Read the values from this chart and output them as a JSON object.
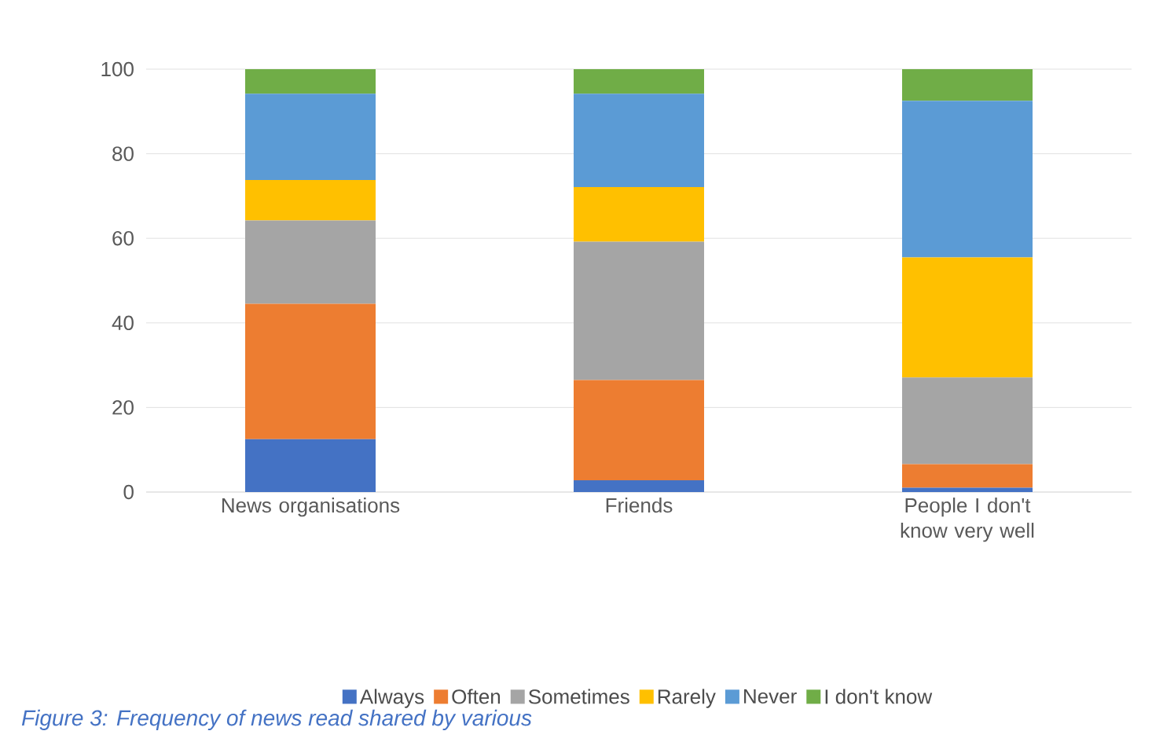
{
  "chart_data": {
    "type": "bar",
    "stacked": true,
    "categories": [
      "News organisations",
      "Friends",
      "People I don't know very well"
    ],
    "series": [
      {
        "name": "Always",
        "color": "#4472c4",
        "values": [
          12.5,
          2.8,
          1.0
        ]
      },
      {
        "name": "Often",
        "color": "#ed7d31",
        "values": [
          32,
          23.7,
          5.6
        ]
      },
      {
        "name": "Sometimes",
        "color": "#a5a5a5",
        "values": [
          19.7,
          32.7,
          20.5
        ]
      },
      {
        "name": "Rarely",
        "color": "#ffc000",
        "values": [
          9.6,
          12.9,
          28.4
        ]
      },
      {
        "name": "Never",
        "color": "#5b9bd5",
        "values": [
          20.4,
          22.1,
          37
        ]
      },
      {
        "name": "I don't know",
        "color": "#70ad47",
        "values": [
          5.8,
          5.8,
          7.5
        ]
      }
    ],
    "ylim": [
      0,
      100
    ],
    "yticks": [
      0,
      20,
      40,
      60,
      80,
      100
    ],
    "grid": "y",
    "legend": "bottom",
    "annotations": [
      "Figure 3: Frequency of news read shared by various"
    ]
  }
}
